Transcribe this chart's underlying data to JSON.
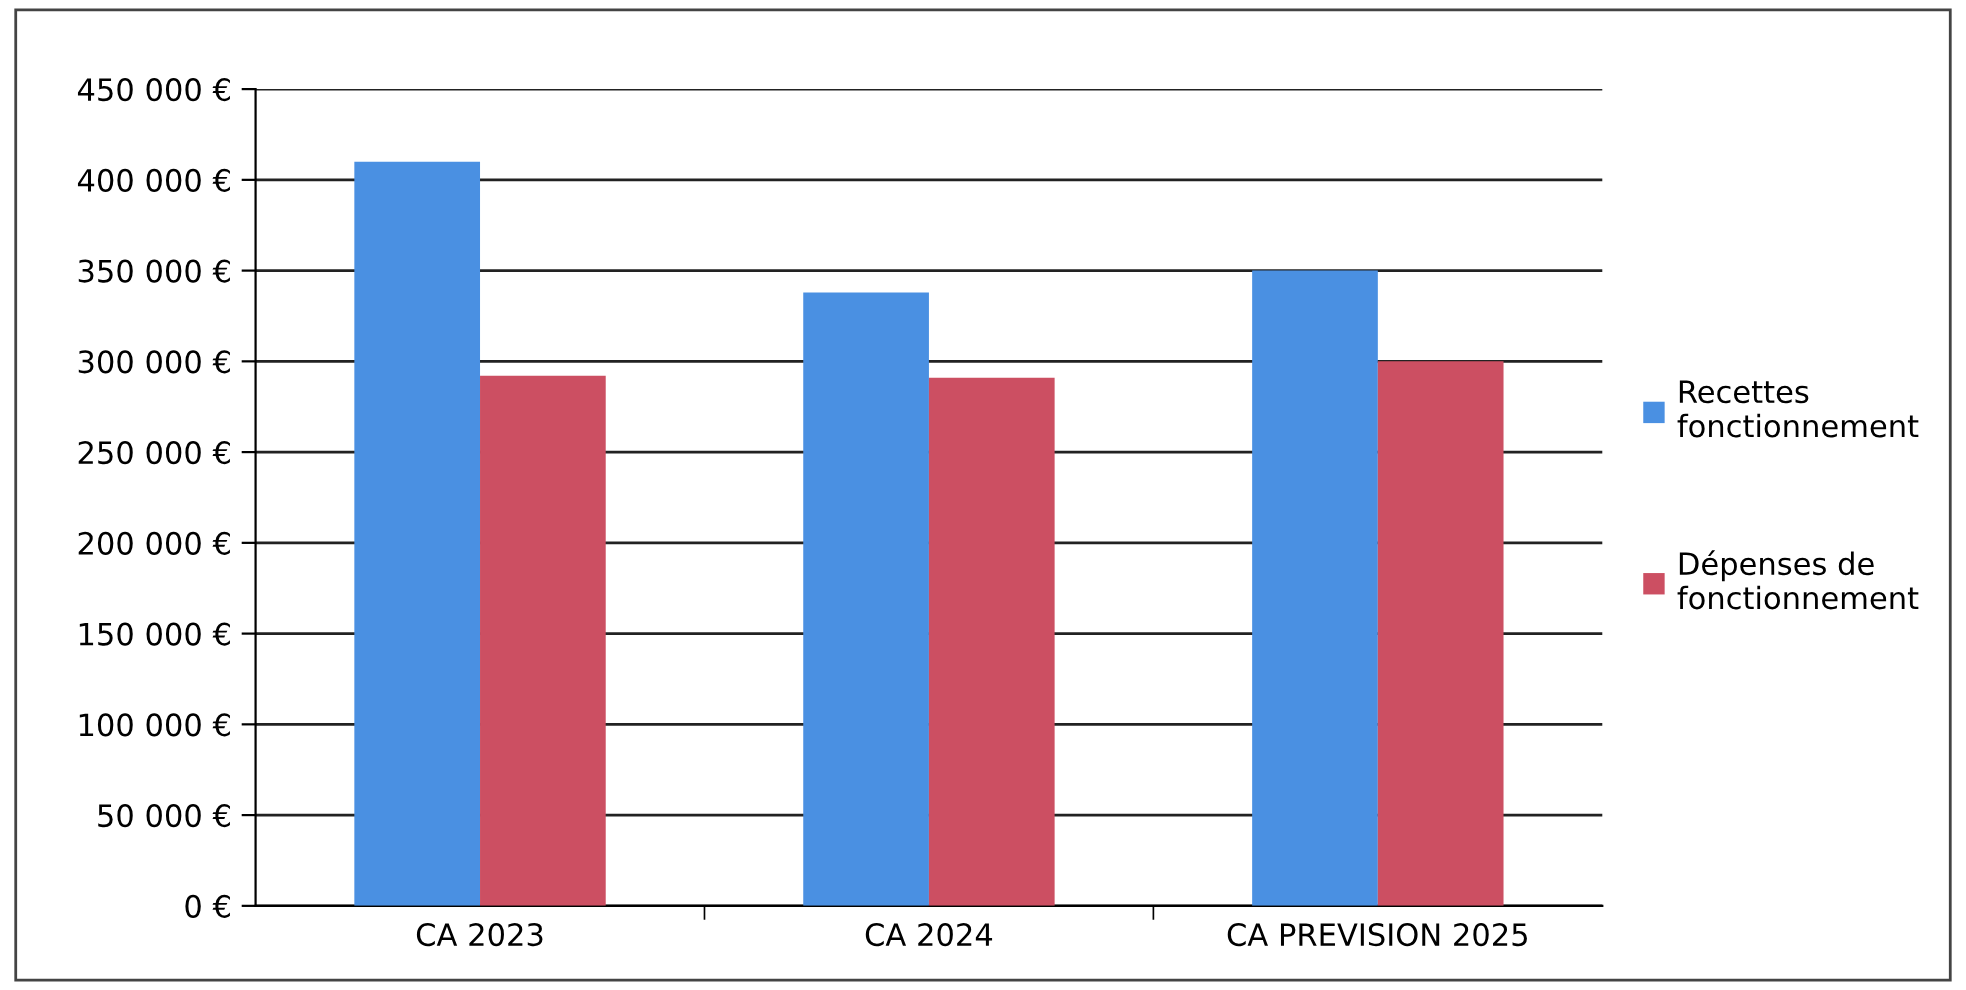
{
  "chart_data": {
    "type": "bar",
    "categories": [
      "CA 2023",
      "CA 2024",
      "CA PREVISION 2025"
    ],
    "series": [
      {
        "name": "Recettes\nfonctionnement",
        "color": "#4a90e2",
        "values": [
          410000,
          338000,
          350000
        ]
      },
      {
        "name": "Dépenses de\nfonctionnement",
        "color": "#cc4f62",
        "values": [
          292000,
          291000,
          300000
        ]
      }
    ],
    "ylim": [
      0,
      450000
    ],
    "yticks": [
      {
        "value": 0,
        "label": "0 €"
      },
      {
        "value": 50000,
        "label": "50 000 €"
      },
      {
        "value": 100000,
        "label": "100 000 €"
      },
      {
        "value": 150000,
        "label": "150 000 €"
      },
      {
        "value": 200000,
        "label": "200 000 €"
      },
      {
        "value": 250000,
        "label": "250 000 €"
      },
      {
        "value": 300000,
        "label": "300 000 €"
      },
      {
        "value": 350000,
        "label": "350 000 €"
      },
      {
        "value": 400000,
        "label": "400 000 €"
      },
      {
        "value": 450000,
        "label": "450 000 €"
      }
    ],
    "grid": "y",
    "legend": "right"
  }
}
